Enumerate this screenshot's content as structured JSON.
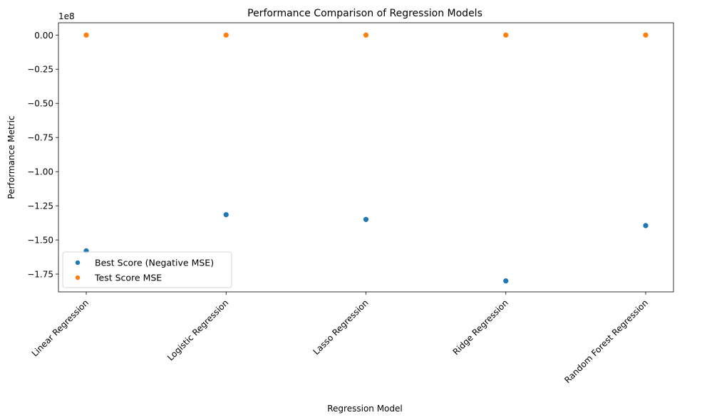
{
  "chart_data": {
    "type": "scatter",
    "title": "Performance Comparison of Regression Models",
    "xlabel": "Regression Model",
    "ylabel": "Performance Metric",
    "y_offset_label": "1e8",
    "y_scale": 100000000,
    "categories": [
      "Linear Regression",
      "Logistic Regression",
      "Lasso Regression",
      "Ridge Regression",
      "Random Forest Regression"
    ],
    "series": [
      {
        "name": "Best Score (Negative MSE)",
        "color": "#1f77b4",
        "values": [
          -158000000,
          -131500000,
          -135000000,
          -180000000,
          -139500000
        ]
      },
      {
        "name": "Test Score MSE",
        "color": "#ff7f0e",
        "values": [
          0,
          0,
          0,
          0,
          0
        ]
      }
    ],
    "ylim": [
      -188000000,
      9000000
    ],
    "yticks": [
      0,
      -0.25,
      -0.5,
      -0.75,
      -1.0,
      -1.25,
      -1.5,
      -1.75
    ],
    "ytick_labels": [
      "0.00",
      "−0.25",
      "−0.50",
      "−0.75",
      "−1.00",
      "−1.25",
      "−1.50",
      "−1.75"
    ],
    "grid": false,
    "legend_position": "lower-left"
  }
}
